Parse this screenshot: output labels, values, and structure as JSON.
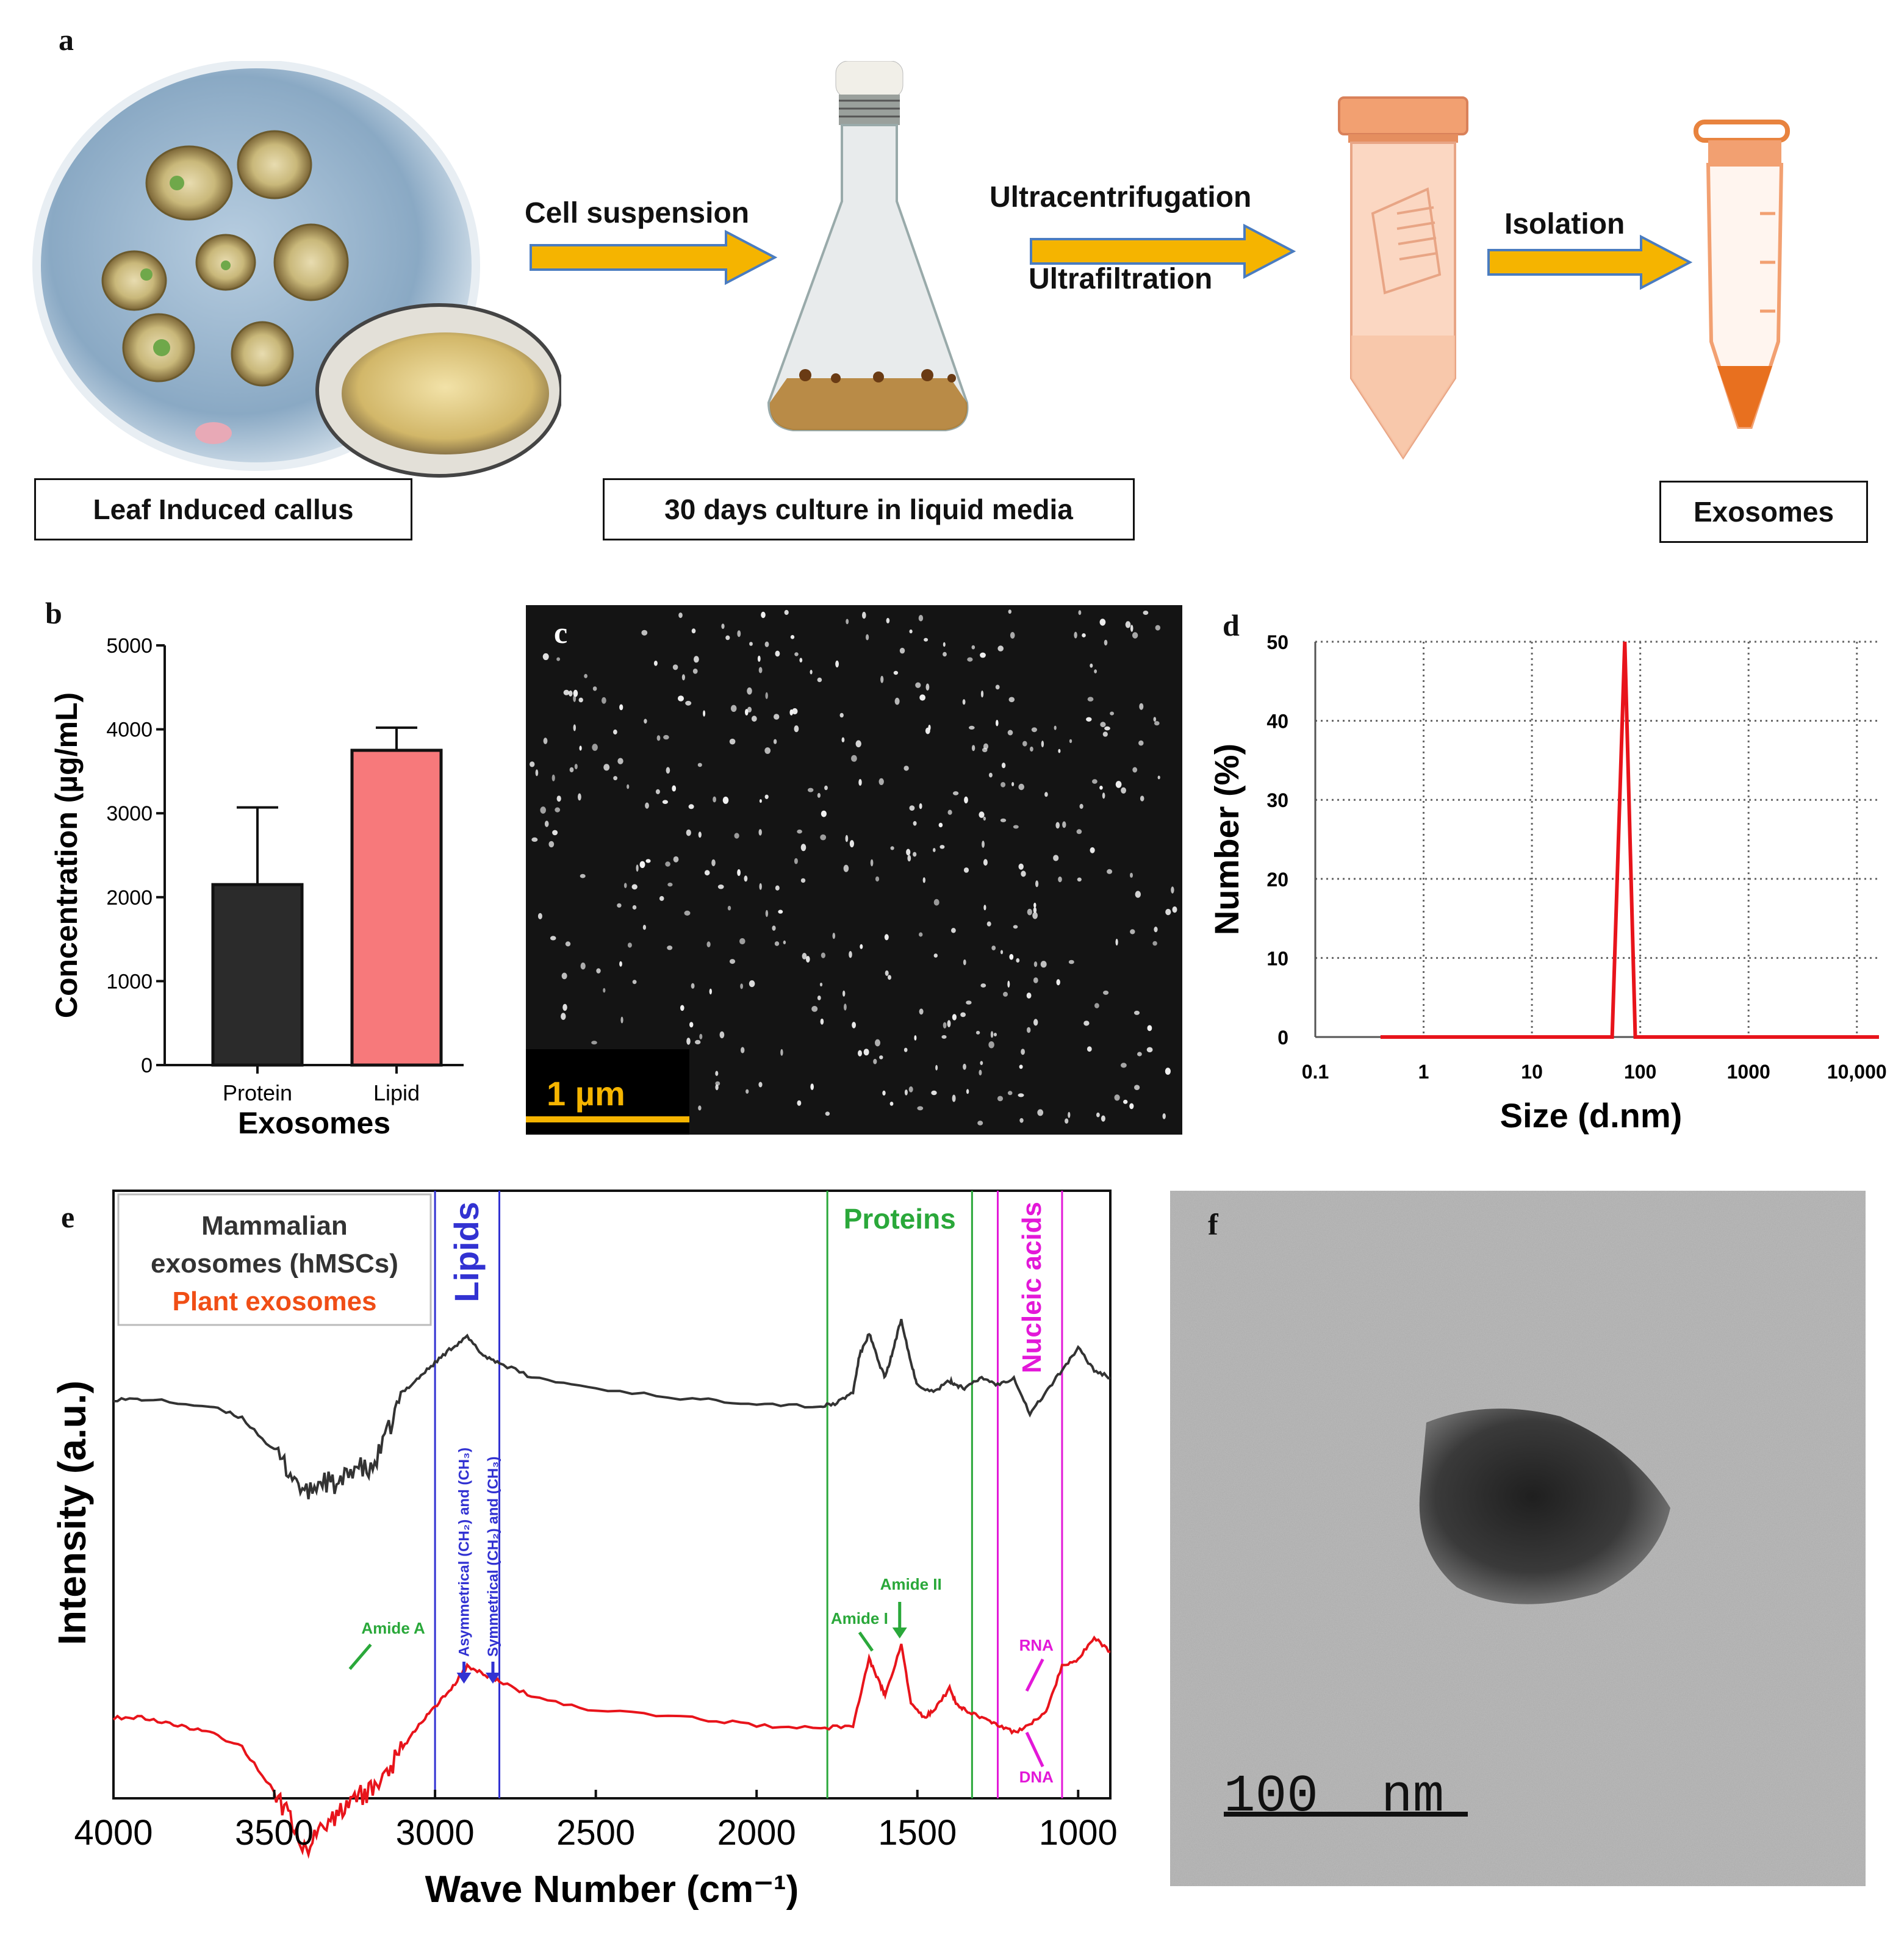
{
  "panel_a": {
    "label": "a",
    "steps": [
      {
        "arrow_label": "Cell suspension"
      },
      {
        "arrow_label_top": "Ultracentrifugation",
        "arrow_label_bottom": "Ultrafiltration"
      },
      {
        "arrow_label": "Isolation"
      }
    ],
    "captions": [
      "Leaf Induced callus",
      "30 days culture in liquid media",
      "Exosomes"
    ],
    "colors": {
      "arrow": "#F5B400",
      "arrow_edge": "#4A7CC0",
      "tube": "#F2A071"
    }
  },
  "panel_b": {
    "label": "b",
    "chart_data": {
      "type": "bar",
      "categories": [
        "Protein",
        "Lipid"
      ],
      "values": [
        2150,
        3750
      ],
      "errors": [
        920,
        270
      ],
      "colors": [
        "#2b2b2b",
        "#F7797B"
      ],
      "ylabel": "Concentration (µg/mL)",
      "xlabel": "Exosomes",
      "ylim": [
        0,
        5000
      ],
      "yticks": [
        0,
        1000,
        2000,
        3000,
        4000,
        5000
      ],
      "ytick_labels": [
        "0",
        "1000",
        "2000",
        "3000",
        "4000",
        "5000"
      ]
    }
  },
  "panel_c": {
    "label": "c",
    "scale_bar": "1 µm"
  },
  "panel_d": {
    "label": "d",
    "chart_data": {
      "type": "line",
      "xscale": "log",
      "x": [
        0.4,
        55,
        72,
        90,
        16000
      ],
      "y": [
        0,
        0,
        50,
        0,
        0
      ],
      "color": "#E8141B",
      "ylabel": "Number (%)",
      "xlabel": "Size (d.nm)",
      "xlim": [
        0.1,
        16000
      ],
      "ylim": [
        0,
        50
      ],
      "xticks": [
        0.1,
        1,
        10,
        100,
        1000,
        10000
      ],
      "xtick_labels": [
        "0.1",
        "1",
        "10",
        "100",
        "1000",
        "10,000"
      ],
      "yticks": [
        0,
        10,
        20,
        30,
        40,
        50
      ],
      "ytick_labels": [
        "0",
        "10",
        "20",
        "30",
        "40",
        "50"
      ],
      "grid": true
    }
  },
  "panel_e": {
    "label": "e",
    "chart_data": {
      "type": "line",
      "xlabel": "Wave Number (cm⁻¹)",
      "ylabel": "Intensity (a.u.)",
      "xlim": [
        4000,
        900
      ],
      "xticks": [
        4000,
        3500,
        3000,
        2500,
        2000,
        1500,
        1000
      ],
      "xtick_labels": [
        "4000",
        "3500",
        "3000",
        "2500",
        "2000",
        "1500",
        "1000"
      ],
      "legend": [
        {
          "text": "Mammalian",
          "color": "#333333"
        },
        {
          "text": "exosomes (hMSCs)",
          "color": "#333333"
        },
        {
          "text": "Plant exosomes",
          "color": "#F04E16"
        }
      ],
      "series": [
        {
          "name": "Mammalian exosomes (hMSCs)",
          "color": "#333333",
          "x": [
            4000,
            3900,
            3700,
            3600,
            3500,
            3450,
            3400,
            3350,
            3300,
            3250,
            3200,
            3150,
            3100,
            3050,
            3000,
            2950,
            2900,
            2850,
            2800,
            2700,
            2500,
            2200,
            2000,
            1800,
            1750,
            1700,
            1680,
            1650,
            1620,
            1600,
            1580,
            1550,
            1520,
            1500,
            1450,
            1400,
            1380,
            1350,
            1300,
            1250,
            1200,
            1150,
            1100,
            1050,
            1000,
            950,
            900
          ],
          "y": [
            0.0,
            0.0,
            -0.02,
            -0.05,
            -0.14,
            -0.2,
            -0.26,
            -0.22,
            -0.24,
            -0.18,
            -0.2,
            -0.1,
            0.02,
            0.06,
            0.1,
            0.14,
            0.17,
            0.12,
            0.1,
            0.06,
            0.03,
            0.0,
            -0.01,
            -0.02,
            -0.01,
            0.02,
            0.12,
            0.18,
            0.1,
            0.06,
            0.12,
            0.22,
            0.1,
            0.04,
            0.02,
            0.05,
            0.04,
            0.03,
            0.06,
            0.04,
            0.06,
            -0.04,
            0.02,
            0.08,
            0.14,
            0.08,
            0.06
          ]
        },
        {
          "name": "Plant exosomes",
          "color": "#E8141B",
          "x": [
            4000,
            3900,
            3800,
            3700,
            3600,
            3500,
            3450,
            3400,
            3350,
            3300,
            3250,
            3200,
            3150,
            3100,
            3050,
            3000,
            2950,
            2900,
            2850,
            2800,
            2700,
            2500,
            2200,
            2000,
            1800,
            1700,
            1650,
            1620,
            1600,
            1550,
            1520,
            1480,
            1450,
            1400,
            1380,
            1350,
            1300,
            1250,
            1200,
            1150,
            1100,
            1050,
            1000,
            950,
            900
          ],
          "y": [
            0.0,
            0.0,
            -0.02,
            -0.04,
            -0.08,
            -0.2,
            -0.28,
            -0.36,
            -0.3,
            -0.26,
            -0.22,
            -0.2,
            -0.15,
            -0.08,
            -0.02,
            0.03,
            0.08,
            0.14,
            0.12,
            0.1,
            0.06,
            0.02,
            0.0,
            -0.02,
            -0.03,
            -0.02,
            0.16,
            0.1,
            0.06,
            0.2,
            0.04,
            0.0,
            0.02,
            0.08,
            0.04,
            0.02,
            0.0,
            -0.02,
            -0.04,
            -0.02,
            0.02,
            0.14,
            0.16,
            0.22,
            0.18
          ]
        }
      ],
      "regions": [
        {
          "name": "Lipids",
          "from": 3000,
          "to": 2800,
          "color": "#3232D2"
        },
        {
          "name": "Proteins",
          "from": 1780,
          "to": 1330,
          "color": "#2AA83A"
        },
        {
          "name": "Nucleic acids",
          "from": 1250,
          "to": 1050,
          "color": "#E318D8"
        }
      ],
      "annotations": [
        {
          "text": "Amide A",
          "color": "#2AA83A"
        },
        {
          "text": "Asymmetrical (CH₂) and (CH₃)",
          "color": "#3232D2"
        },
        {
          "text": "Symmetrical (CH₂) and (CH₃)",
          "color": "#3232D2"
        },
        {
          "text": "Amide I",
          "color": "#2AA83A"
        },
        {
          "text": "Amide II",
          "color": "#2AA83A"
        },
        {
          "text": "RNA",
          "color": "#E318D8"
        },
        {
          "text": "DNA",
          "color": "#E318D8"
        }
      ]
    }
  },
  "panel_f": {
    "label": "f",
    "scale_bar": "100  nm"
  }
}
